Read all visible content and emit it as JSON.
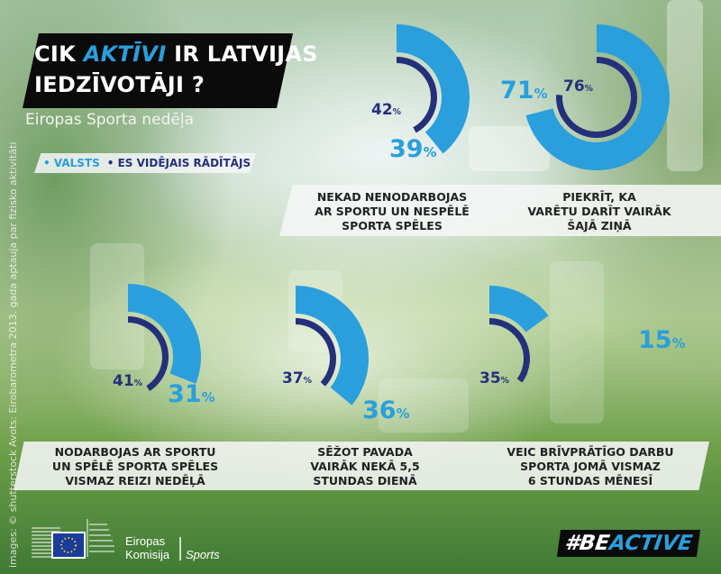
{
  "title": {
    "line1_pre": "CIK ",
    "line1_highlight": "AKTĪVI",
    "line1_post": " IR LATVIJAS",
    "line2": "IEDZĪVOTĀJI ?"
  },
  "subtitle": "Eiropas Sporta nedēļa",
  "legend": {
    "country": "• VALSTS",
    "eu": "• ES VIDĒJAIS RĀDĪTĀJS"
  },
  "colors": {
    "country": "#2a9fdc",
    "eu": "#25307a",
    "title_bg": "#0b0b0b"
  },
  "credit": "images: © shutterstock   Avots: Eirobarometra 2013. gada aptauja par fizisko aktivitāti",
  "footer": {
    "org_line1": "Eiropas",
    "org_line2": "Komisija",
    "org_sub": "Sports",
    "hashtag_a": "#BE",
    "hashtag_b": "ACTIVE"
  },
  "chart_data": {
    "type": "radial-bar",
    "unit": "%",
    "categories": [
      [
        "NEKAD NENODARBOJAS",
        "AR SPORTU UN NESPĒLĒ",
        "SPORTA SPĒLES"
      ],
      [
        "PIEKRĪT, KA",
        "VARĒTU DARĪT VAIRĀK",
        "ŠAJĀ ZIŅĀ"
      ],
      [
        "NODARBOJAS AR SPORTU",
        "UN SPĒLĒ SPORTA SPĒLES",
        "VISMAZ REIZI NEDĒĻĀ"
      ],
      [
        "SĒŽOT PAVADA",
        "VAIRĀK NEKĀ 5,5",
        "STUNDAS DIENĀ"
      ],
      [
        "VEIC BRĪVPRĀTĪGO DARBU",
        "SPORTA JOMĀ VISMAZ",
        "6 STUNDAS MĒNESĪ"
      ]
    ],
    "series": [
      {
        "name": "VALSTS",
        "values": [
          39,
          71,
          31,
          36,
          15
        ]
      },
      {
        "name": "ES VIDĒJAIS RĀDĪTĀJS",
        "values": [
          42,
          76,
          41,
          37,
          35
        ]
      }
    ]
  }
}
